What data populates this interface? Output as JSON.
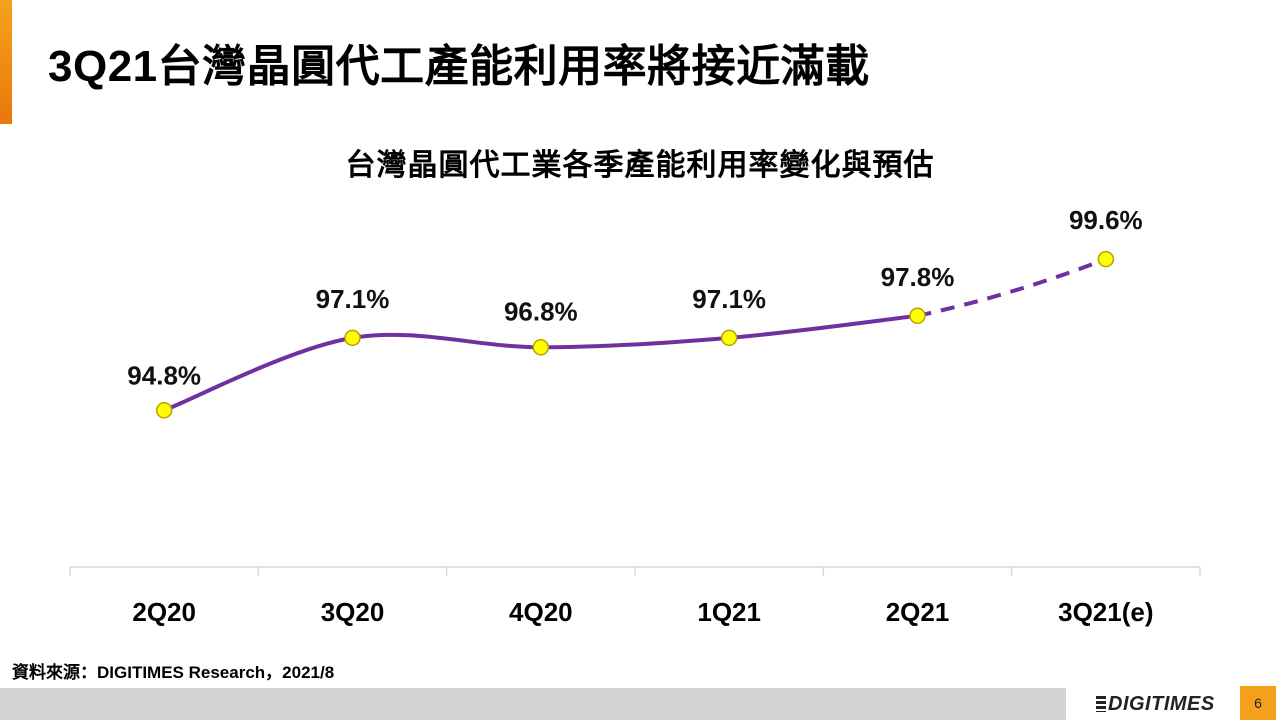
{
  "slide": {
    "title": "3Q21台灣晶圓代工產能利用率將接近滿載",
    "source": "資料來源：DIGITIMES Research，2021/8",
    "brand": "DIGITIMES",
    "page_number": "6"
  },
  "colors": {
    "accent": "#f5a01a",
    "line": "#7030a0",
    "marker_fill": "#ffff00",
    "marker_stroke": "#b8a000",
    "footer": "#d4d4d4"
  },
  "chart_data": {
    "type": "line",
    "title": "台灣晶圓代工業各季產能利用率變化與預估",
    "xlabel": "",
    "ylabel": "",
    "categories": [
      "2Q20",
      "3Q20",
      "4Q20",
      "1Q21",
      "2Q21",
      "3Q21(e)"
    ],
    "series": [
      {
        "name": "產能利用率",
        "values": [
          94.8,
          97.1,
          96.8,
          97.1,
          97.8,
          99.6
        ],
        "labels": [
          "94.8%",
          "97.1%",
          "96.8%",
          "97.1%",
          "97.8%",
          "99.6%"
        ],
        "estimated_from_index": 4
      }
    ],
    "ylim": [
      91.0,
      101.0
    ],
    "grid": false,
    "legend": "none"
  }
}
